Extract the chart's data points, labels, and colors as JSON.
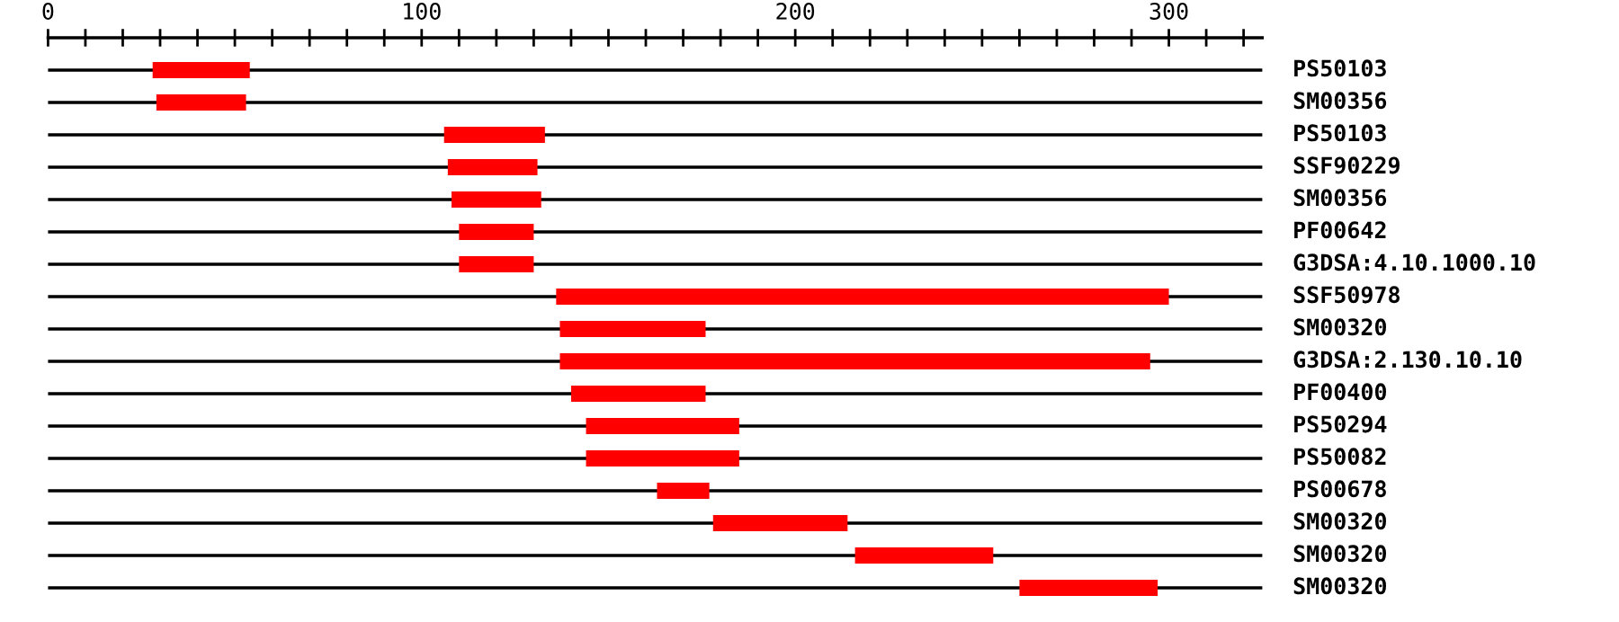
{
  "chart_data": {
    "type": "bar",
    "orientation": "horizontal",
    "categories": [
      "PS50103",
      "SM00356",
      "PS50103",
      "SSF90229",
      "SM00356",
      "PF00642",
      "G3DSA:4.10.1000.10",
      "SSF50978",
      "SM00320",
      "G3DSA:2.130.10.10",
      "PF00400",
      "PS50294",
      "PS50082",
      "PS00678",
      "SM00320",
      "SM00320",
      "SM00320"
    ],
    "base": [
      28,
      29,
      106,
      107,
      108,
      110,
      110,
      136,
      137,
      137,
      140,
      144,
      144,
      163,
      178,
      216,
      260
    ],
    "values": [
      26,
      24,
      27,
      24,
      24,
      20,
      20,
      164,
      39,
      158,
      36,
      41,
      41,
      14,
      36,
      37,
      37
    ],
    "color": "#ff0000",
    "xlim": [
      0,
      325
    ],
    "xticks": [
      0,
      {
        "value": 10,
        "label": null
      },
      {
        "value": 20,
        "label": null
      },
      {
        "value": 30,
        "label": null
      },
      {
        "value": 40,
        "label": null
      },
      {
        "value": 50,
        "label": null
      },
      {
        "value": 60,
        "label": null
      },
      {
        "value": 70,
        "label": null
      },
      {
        "value": 80,
        "label": null
      },
      {
        "value": 90,
        "label": null
      },
      100,
      {
        "value": 110,
        "label": null
      },
      {
        "value": 120,
        "label": null
      },
      {
        "value": 130,
        "label": null
      },
      {
        "value": 140,
        "label": null
      },
      {
        "value": 150,
        "label": null
      },
      {
        "value": 160,
        "label": null
      },
      {
        "value": 170,
        "label": null
      },
      {
        "value": 180,
        "label": null
      },
      {
        "value": 190,
        "label": null
      },
      200,
      {
        "value": 210,
        "label": null
      },
      {
        "value": 220,
        "label": null
      },
      {
        "value": 230,
        "label": null
      },
      {
        "value": 240,
        "label": null
      },
      {
        "value": 250,
        "label": null
      },
      {
        "value": 260,
        "label": null
      },
      {
        "value": 270,
        "label": null
      },
      {
        "value": 280,
        "label": null
      },
      {
        "value": 290,
        "label": null
      },
      300,
      {
        "value": 310,
        "label": null
      },
      {
        "value": 320,
        "label": null
      }
    ],
    "grid": "y"
  }
}
